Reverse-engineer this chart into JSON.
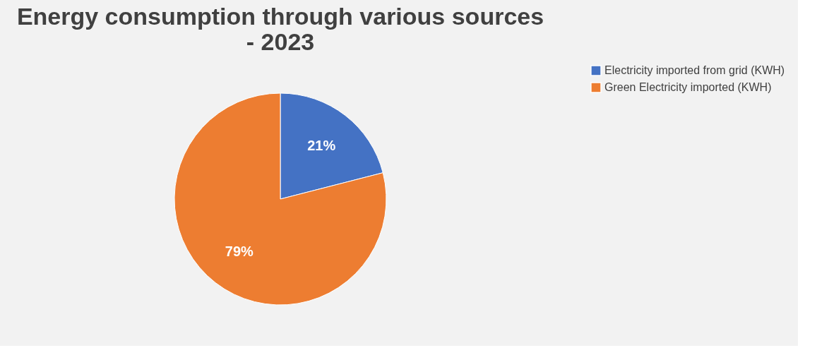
{
  "chart_data": {
    "type": "pie",
    "title": [
      "Energy consumption through various sources",
      "- 2023"
    ],
    "categories": [
      "Electricity imported from grid (KWH)",
      "Green Electricity imported (KWH)"
    ],
    "values": [
      21,
      79
    ],
    "colors": [
      "#4472c4",
      "#ed7d31"
    ],
    "value_labels": [
      "21%",
      "79%"
    ],
    "legend": "right"
  }
}
